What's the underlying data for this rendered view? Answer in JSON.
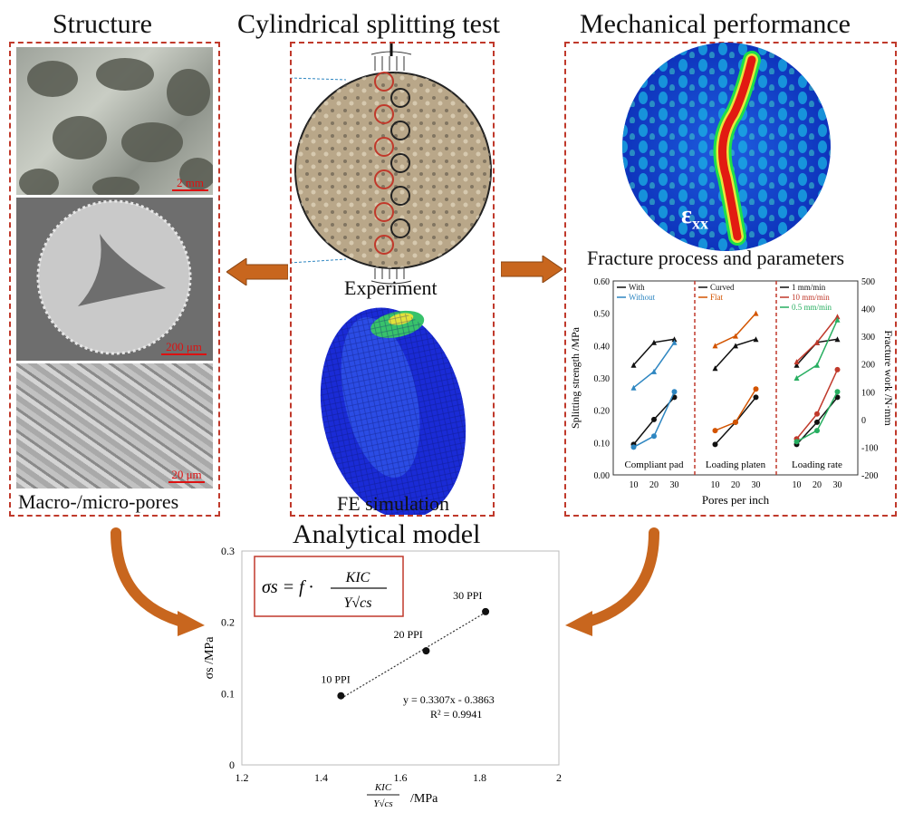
{
  "titles": {
    "structure": "Structure",
    "splitting": "Cylindrical splitting test",
    "mechanical": "Mechanical performance",
    "analytical": "Analytical model"
  },
  "structure": {
    "scale1": "2 mm",
    "scale2": "200 μm",
    "scale3": "20 μm",
    "caption": "Macro-/micro-pores"
  },
  "splitting": {
    "experiment": "Experiment",
    "fe": "FE simulation"
  },
  "mechanical": {
    "strain_label": "ε",
    "strain_sub": "xx",
    "fracture_title": "Fracture process and parameters"
  },
  "colors": {
    "dash": "#c0392b",
    "arrow": "#c8661e",
    "black": "#111111",
    "blue": "#2e86c1",
    "orange": "#d35400",
    "red": "#c0392b",
    "green": "#27ae60"
  },
  "chart_data": [
    {
      "type": "line",
      "y_left_label": "Splitting strength /MPa",
      "y_right_label": "Fracture work /N·mm",
      "x_label": "Pores per inch",
      "ylim_left": [
        0,
        0.6
      ],
      "yticks_left": [
        "0.00",
        "0.10",
        "0.20",
        "0.30",
        "0.40",
        "0.50",
        "0.60"
      ],
      "ylim_right": [
        -200,
        500
      ],
      "yticks_right": [
        "-200",
        "-100",
        "0",
        "100",
        "200",
        "300",
        "400",
        "500"
      ],
      "panels": [
        {
          "label": "Compliant pad",
          "xticks": [
            "10",
            "20",
            "30"
          ],
          "series": [
            {
              "name": "With",
              "color": "black",
              "strength": [
                0.34,
                0.41,
                0.42
              ],
              "work": [
                -90,
                0,
                80
              ]
            },
            {
              "name": "Without",
              "color": "blue",
              "strength": [
                0.27,
                0.32,
                0.41
              ],
              "work": [
                -100,
                -60,
                100
              ]
            }
          ]
        },
        {
          "label": "Loading platen",
          "xticks": [
            "10",
            "20",
            "30"
          ],
          "series": [
            {
              "name": "Curved",
              "color": "black",
              "strength": [
                0.33,
                0.4,
                0.42
              ],
              "work": [
                -90,
                -10,
                80
              ]
            },
            {
              "name": "Flat",
              "color": "orange",
              "strength": [
                0.4,
                0.43,
                0.5
              ],
              "work": [
                -40,
                -10,
                110
              ]
            }
          ]
        },
        {
          "label": "Loading rate",
          "xticks": [
            "10",
            "20",
            "30"
          ],
          "series": [
            {
              "name": "1 mm/min",
              "color": "black",
              "strength": [
                0.34,
                0.41,
                0.42
              ],
              "work": [
                -90,
                -10,
                80
              ]
            },
            {
              "name": "10 mm/min",
              "color": "red",
              "strength": [
                0.35,
                0.41,
                0.49
              ],
              "work": [
                -70,
                20,
                180
              ]
            },
            {
              "name": "0.5 mm/min",
              "color": "green",
              "strength": [
                0.3,
                0.34,
                0.48
              ],
              "work": [
                -80,
                -40,
                100
              ]
            }
          ]
        }
      ]
    },
    {
      "type": "scatter",
      "title": "Analytical model",
      "xlabel": "/MPa",
      "ylabel": "σs /MPa",
      "xlim": [
        1.2,
        2.0
      ],
      "xticks": [
        "1.2",
        "1.4",
        "1.6",
        "1.8",
        "2"
      ],
      "ylim": [
        0,
        0.3
      ],
      "yticks": [
        "0",
        "0.1",
        "0.2",
        "0.3"
      ],
      "points": [
        {
          "x": 1.45,
          "y": 0.097,
          "label": "10 PPI"
        },
        {
          "x": 1.665,
          "y": 0.16,
          "label": "20 PPI"
        },
        {
          "x": 1.815,
          "y": 0.215,
          "label": "30 PPI"
        }
      ],
      "equation": "y = 0.3307x - 0.3863",
      "r2": "R² = 0.9941",
      "formula_lhs": "σs = f ·",
      "formula_num": "KIC",
      "formula_den": "Y√cs"
    }
  ]
}
